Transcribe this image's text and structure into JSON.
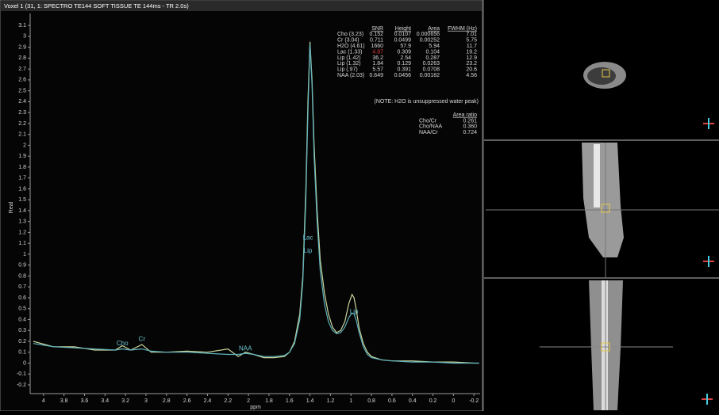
{
  "title": "Voxel 1 (31, 1: SPECTRO TE144 SOFT TISSUE TE 144ms - TR 2.0s)",
  "chart_data": {
    "type": "line",
    "x_label": "ppm",
    "y_label": "Real",
    "xlim": [
      4.13,
      -0.26
    ],
    "ylim": [
      -0.28,
      3.21
    ],
    "xticks": [
      4,
      3.8,
      3.6,
      3.4,
      3.2,
      3,
      2.8,
      2.6,
      2.4,
      2.2,
      2,
      1.8,
      1.6,
      1.4,
      1.2,
      1,
      0.8,
      0.6,
      0.4,
      0.2,
      0,
      -0.2
    ],
    "yticks": [
      -0.2,
      -0.1,
      0,
      0.1,
      0.2,
      0.3,
      0.4,
      0.5,
      0.6,
      0.7,
      0.8,
      0.9,
      1,
      1.1,
      1.2,
      1.3,
      1.4,
      1.5,
      1.6,
      1.7,
      1.8,
      1.9,
      2,
      2.1,
      2.2,
      2.3,
      2.4,
      2.5,
      2.6,
      2.7,
      2.8,
      2.9,
      3,
      3.1
    ],
    "x": [
      4.1,
      3.9,
      3.7,
      3.5,
      3.3,
      3.23,
      3.15,
      3.04,
      2.95,
      2.8,
      2.6,
      2.4,
      2.2,
      2.1,
      2.03,
      1.95,
      1.85,
      1.75,
      1.65,
      1.6,
      1.55,
      1.5,
      1.47,
      1.44,
      1.42,
      1.4,
      1.38,
      1.36,
      1.33,
      1.3,
      1.26,
      1.22,
      1.18,
      1.14,
      1.1,
      1.06,
      1.02,
      0.99,
      0.97,
      0.95,
      0.92,
      0.88,
      0.84,
      0.8,
      0.7,
      0.6,
      0.4,
      0.2,
      0,
      -0.2,
      -0.25
    ],
    "series": [
      {
        "color": "#c9d79c",
        "values": [
          0.2,
          0.15,
          0.15,
          0.12,
          0.12,
          0.16,
          0.12,
          0.17,
          0.1,
          0.1,
          0.11,
          0.1,
          0.13,
          0.06,
          0.1,
          0.08,
          0.05,
          0.05,
          0.06,
          0.1,
          0.2,
          0.45,
          0.8,
          1.6,
          2.4,
          2.95,
          2.6,
          2.0,
          1.4,
          0.95,
          0.65,
          0.45,
          0.33,
          0.28,
          0.3,
          0.38,
          0.55,
          0.63,
          0.6,
          0.5,
          0.32,
          0.18,
          0.1,
          0.06,
          0.03,
          0.02,
          0.02,
          0.01,
          0.01,
          0.0,
          0.0
        ]
      },
      {
        "color": "#5fb3bd",
        "values": [
          0.18,
          0.15,
          0.14,
          0.13,
          0.12,
          0.13,
          0.12,
          0.13,
          0.11,
          0.1,
          0.1,
          0.09,
          0.08,
          0.08,
          0.09,
          0.08,
          0.06,
          0.06,
          0.07,
          0.1,
          0.18,
          0.4,
          0.75,
          1.5,
          2.3,
          2.93,
          2.55,
          1.9,
          1.3,
          0.85,
          0.55,
          0.38,
          0.3,
          0.27,
          0.28,
          0.33,
          0.42,
          0.46,
          0.45,
          0.4,
          0.28,
          0.15,
          0.08,
          0.05,
          0.03,
          0.02,
          0.01,
          0.01,
          0.0,
          0.0,
          0.0
        ]
      }
    ],
    "annotations": [
      {
        "text": "Cho",
        "x": 3.23,
        "y": 0.18
      },
      {
        "text": "Cr",
        "x": 3.04,
        "y": 0.22
      },
      {
        "text": "NAA",
        "x": 2.03,
        "y": 0.13
      },
      {
        "text": "Lac",
        "x": 1.42,
        "y": 1.15
      },
      {
        "text": "Lip",
        "x": 1.42,
        "y": 1.03
      },
      {
        "text": "Lip",
        "x": 0.97,
        "y": 0.47
      }
    ]
  },
  "table": {
    "headers": [
      "SNR",
      "Height",
      "Area",
      "FWHM (Hz)"
    ],
    "rows": [
      [
        "Cho (3.23)",
        "0.152",
        "0.0107",
        "0.000656",
        "7.01"
      ],
      [
        "Cr (3.04)",
        "0.711",
        "0.0499",
        "0.00252",
        "5.75"
      ],
      [
        "H2O (4.61)",
        "1660",
        "57.9",
        "5.94",
        "11.7"
      ],
      [
        "Lac (1.33)",
        "4.87",
        "0.309",
        "0.104",
        "19.2"
      ],
      [
        "Lip (1.42)",
        "36.2",
        "2.54",
        "0.287",
        "12.9"
      ],
      [
        "Lip (1.32)",
        "1.84",
        "0.129",
        "0.0263",
        "23.2"
      ],
      [
        "Lip (.97)",
        "5.57",
        "0.391",
        "0.0708",
        "20.6"
      ],
      [
        "NAA (2.03)",
        "0.649",
        "0.0456",
        "0.00182",
        "4.56"
      ]
    ],
    "flagged_cells": [
      {
        "row": 3,
        "col": 1,
        "color": "#e03a3a"
      }
    ],
    "note": "(NOTE: H2O is unsuppressed water peak)"
  },
  "ratios": {
    "header": "Area ratio",
    "rows": [
      [
        "Cho/Cr",
        "0.261"
      ],
      [
        "Cho/NAA",
        "0.360"
      ],
      [
        "NAA/Cr",
        "0.724"
      ]
    ]
  }
}
